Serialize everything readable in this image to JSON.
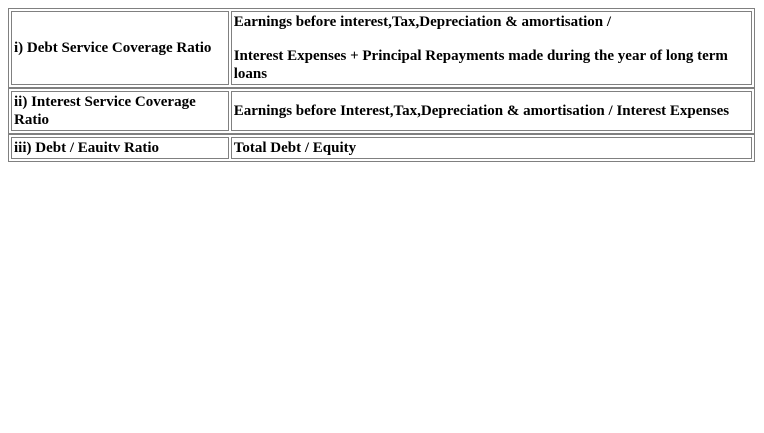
{
  "ratios": [
    {
      "name": "i) Debt Service Coverage Ratio",
      "formula_lines": [
        "Earnings before interest,Tax,Depreciation & amortisation /",
        "Interest Expenses + Principal Repayments made during the year of long term loans"
      ]
    },
    {
      "name": "ii) Interest Service Coverage Ratio",
      "formula": "Earnings before Interest,Tax,Depreciation & amortisation / Interest Expenses"
    },
    {
      "name": "iii) Debt / Eauitv Ratio",
      "formula": "Total Debt / Equity"
    }
  ]
}
